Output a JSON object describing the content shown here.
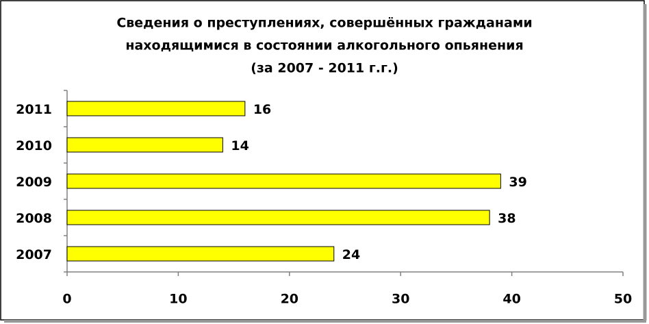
{
  "chart_data": {
    "type": "bar",
    "orientation": "horizontal",
    "title": [
      "Сведения о преступлениях, совершённых гражданами",
      "находящимися в состоянии алкогольного опьянения",
      "(за 2007 - 2011 г.г.)"
    ],
    "categories": [
      "2011",
      "2010",
      "2009",
      "2008",
      "2007"
    ],
    "values": [
      16,
      14,
      39,
      38,
      24
    ],
    "color": "#ffff00",
    "xlim": [
      0,
      50
    ],
    "xticks": [
      0,
      10,
      20,
      30,
      40,
      50
    ],
    "grid": false
  }
}
